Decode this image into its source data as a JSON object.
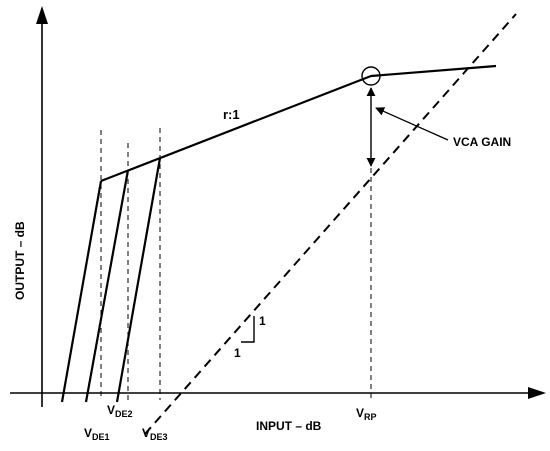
{
  "axes": {
    "y_label": "OUTPUT – dB",
    "x_label": "INPUT – dB"
  },
  "annotations": {
    "ratio": "r:1",
    "vca_gain": "VCA GAIN",
    "slope_rise": "1",
    "slope_run": "1"
  },
  "markers": {
    "vde1": {
      "base": "V",
      "sub": "DE1"
    },
    "vde2": {
      "base": "V",
      "sub": "DE2"
    },
    "vde3": {
      "base": "V",
      "sub": "DE3"
    },
    "vrp": {
      "base": "V",
      "sub": "RP"
    }
  }
}
